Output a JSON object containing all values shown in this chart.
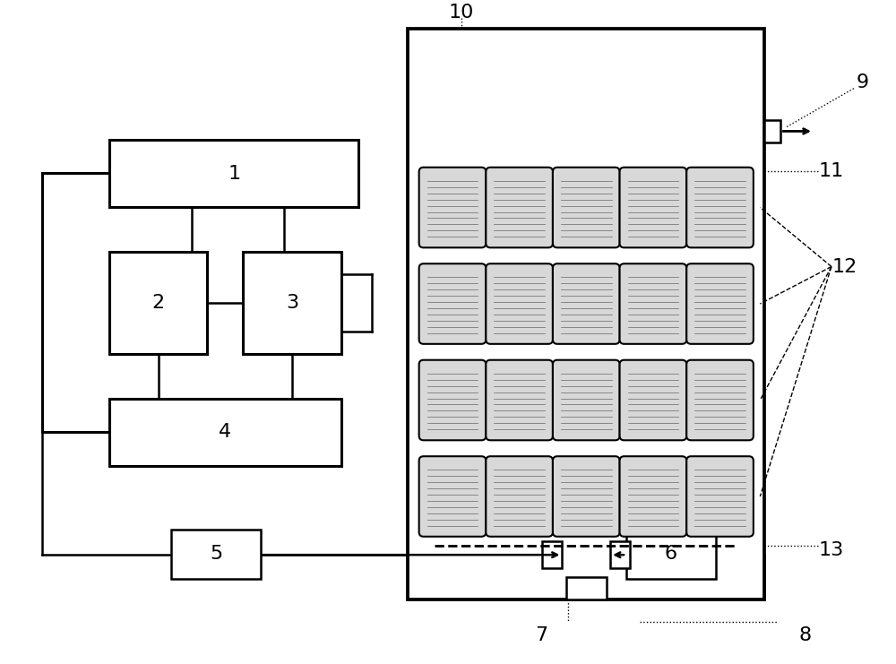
{
  "bg_color": "#ffffff",
  "cell_fill": "#d8d8d8",
  "labels": [
    "1",
    "2",
    "3",
    "4",
    "5",
    "6",
    "7",
    "8",
    "9",
    "10",
    "11",
    "12",
    "13"
  ],
  "font_size": 16
}
